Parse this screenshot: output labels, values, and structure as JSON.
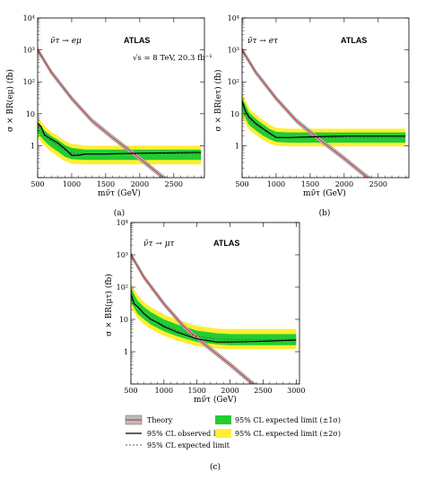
{
  "figure": {
    "legend": {
      "theory": "Theory",
      "observed": "95% CL observed limit",
      "expected": "95% CL expected limit",
      "band1": "95% CL expected limit (±1σ)",
      "band2": "95% CL expected limit (±2σ)"
    },
    "colors": {
      "band1": "#22cc33",
      "band2": "#ffee33",
      "theory_fill": "#bbbbbb",
      "theory_line": "#cc2222",
      "observed": "#000000",
      "expected": "#555555"
    }
  },
  "chart_data": [
    {
      "type": "line",
      "panel_label": "(a)",
      "title": "ATLAS",
      "process": "ν̃τ → eμ",
      "energy": "√s = 8 TeV, 20.3 fb⁻¹",
      "xlabel": "mν̃τ (GeV)",
      "ylabel": "σ × BR(eμ) (fb)",
      "xlim": [
        500,
        2950
      ],
      "ylim": [
        0.1,
        10000
      ],
      "yscale": "log",
      "x_ticks": [
        "500",
        "1000",
        "1500",
        "2000",
        "2500"
      ],
      "y_ticks": [
        "1",
        "10",
        "10²",
        "10³",
        "10⁴"
      ],
      "theory": {
        "x": [
          500,
          700,
          1000,
          1300,
          1600,
          2000,
          2300,
          2500
        ],
        "y": [
          1000,
          200,
          30,
          6,
          1.8,
          0.4,
          0.12,
          0.06
        ]
      },
      "observed": {
        "x": [
          500,
          550,
          600,
          700,
          800,
          900,
          1000,
          1100,
          1200,
          1500,
          2000,
          2500,
          2900
        ],
        "y": [
          5,
          4,
          2.2,
          1.6,
          1.2,
          0.8,
          0.5,
          0.5,
          0.55,
          0.55,
          0.58,
          0.6,
          0.62
        ]
      },
      "expected": {
        "x": [
          500,
          550,
          600,
          700,
          800,
          900,
          1000,
          1100,
          1200,
          1500,
          2000,
          2500,
          2900
        ],
        "y": [
          4,
          3.5,
          2,
          1.4,
          1,
          0.7,
          0.6,
          0.55,
          0.55,
          0.55,
          0.55,
          0.55,
          0.55
        ]
      },
      "band1": {
        "x": [
          500,
          600,
          700,
          800,
          900,
          1000,
          1200,
          1500,
          2000,
          2500,
          2900
        ],
        "lo": [
          2.5,
          1.4,
          0.9,
          0.65,
          0.45,
          0.38,
          0.36,
          0.36,
          0.36,
          0.36,
          0.36
        ],
        "hi": [
          5.5,
          3,
          2,
          1.5,
          1.05,
          0.85,
          0.75,
          0.75,
          0.75,
          0.75,
          0.75
        ]
      },
      "band2": {
        "x": [
          500,
          600,
          700,
          800,
          900,
          1000,
          1200,
          1500,
          2000,
          2500,
          2900
        ],
        "lo": [
          1.8,
          1,
          0.65,
          0.45,
          0.33,
          0.27,
          0.26,
          0.26,
          0.26,
          0.26,
          0.26
        ],
        "hi": [
          7.5,
          4.2,
          2.7,
          2,
          1.4,
          1.15,
          1,
          1,
          1,
          1,
          1
        ]
      }
    },
    {
      "type": "line",
      "panel_label": "(b)",
      "title": "ATLAS",
      "process": "ν̃τ → eτ",
      "xlabel": "mν̃τ (GeV)",
      "ylabel": "σ × BR(eτ) (fb)",
      "xlim": [
        500,
        2950
      ],
      "ylim": [
        0.1,
        10000
      ],
      "yscale": "log",
      "x_ticks": [
        "500",
        "1000",
        "1500",
        "2000",
        "2500"
      ],
      "y_ticks": [
        "1",
        "10",
        "10²",
        "10³",
        "10⁴"
      ],
      "theory": {
        "x": [
          500,
          700,
          1000,
          1300,
          1600,
          2000,
          2300,
          2500
        ],
        "y": [
          1000,
          200,
          30,
          6,
          1.8,
          0.4,
          0.12,
          0.06
        ]
      },
      "observed": {
        "x": [
          500,
          550,
          600,
          700,
          800,
          900,
          1000,
          1100,
          1200,
          1500,
          2000,
          2500,
          2900
        ],
        "y": [
          25,
          12,
          8,
          5,
          3.5,
          2.5,
          1.8,
          1.8,
          1.8,
          1.9,
          2,
          2,
          2
        ]
      },
      "expected": {
        "x": [
          500,
          550,
          600,
          700,
          800,
          900,
          1000,
          1100,
          1200,
          1500,
          2000,
          2500,
          2900
        ],
        "y": [
          20,
          11,
          7,
          4.5,
          3.2,
          2.3,
          1.9,
          1.8,
          1.8,
          1.8,
          1.8,
          1.8,
          1.8
        ]
      },
      "band1": {
        "x": [
          500,
          600,
          700,
          800,
          900,
          1000,
          1200,
          1500,
          2000,
          2500,
          2900
        ],
        "lo": [
          12,
          4.5,
          3,
          2.1,
          1.6,
          1.3,
          1.25,
          1.25,
          1.25,
          1.25,
          1.25
        ],
        "hi": [
          32,
          11,
          7,
          4.8,
          3.4,
          2.7,
          2.6,
          2.6,
          2.6,
          2.6,
          2.6
        ]
      },
      "band2": {
        "x": [
          500,
          600,
          700,
          800,
          900,
          1000,
          1200,
          1500,
          2000,
          2500,
          2900
        ],
        "lo": [
          8,
          3.2,
          2.2,
          1.5,
          1.2,
          1,
          0.95,
          0.95,
          0.95,
          0.95,
          0.95
        ],
        "hi": [
          45,
          15,
          9.5,
          6.5,
          4.6,
          3.6,
          3.4,
          3.4,
          3.4,
          3.4,
          3.4
        ]
      }
    },
    {
      "type": "line",
      "panel_label": "(c)",
      "title": "ATLAS",
      "process": "ν̃τ → μτ",
      "xlabel": "mν̃τ (GeV)",
      "ylabel": "σ × BR(μτ) (fb)",
      "xlim": [
        500,
        3050
      ],
      "ylim": [
        0.1,
        10000
      ],
      "yscale": "log",
      "x_ticks": [
        "500",
        "1000",
        "1500",
        "2000",
        "2500",
        "3000"
      ],
      "y_ticks": [
        "1",
        "10",
        "10²",
        "10³",
        "10⁴"
      ],
      "theory": {
        "x": [
          500,
          700,
          1000,
          1300,
          1600,
          2000,
          2300,
          2500
        ],
        "y": [
          1000,
          200,
          30,
          6,
          1.8,
          0.4,
          0.12,
          0.06
        ]
      },
      "observed": {
        "x": [
          500,
          550,
          600,
          700,
          800,
          900,
          1000,
          1200,
          1500,
          1800,
          2000,
          2500,
          3000
        ],
        "y": [
          60,
          30,
          25,
          15,
          10,
          8,
          6,
          4,
          2.5,
          2,
          2,
          2.1,
          2.3
        ]
      },
      "expected": {
        "x": [
          500,
          550,
          600,
          700,
          800,
          900,
          1000,
          1200,
          1500,
          1800,
          2000,
          2500,
          3000
        ],
        "y": [
          55,
          32,
          24,
          15,
          11,
          8,
          6.5,
          4.5,
          3,
          2.5,
          2.4,
          2.4,
          2.4
        ]
      },
      "band1": {
        "x": [
          500,
          600,
          700,
          800,
          1000,
          1200,
          1500,
          1800,
          2000,
          2500,
          3000
        ],
        "lo": [
          35,
          15,
          10,
          7,
          4.3,
          3,
          2,
          1.7,
          1.6,
          1.6,
          1.6
        ],
        "hi": [
          90,
          38,
          24,
          17,
          10,
          7,
          4.5,
          3.7,
          3.5,
          3.5,
          3.5
        ]
      },
      "band2": {
        "x": [
          500,
          600,
          700,
          800,
          1000,
          1200,
          1500,
          1800,
          2000,
          2500,
          3000
        ],
        "lo": [
          25,
          11,
          7,
          5,
          3.1,
          2.2,
          1.5,
          1.25,
          1.2,
          1.2,
          1.2
        ],
        "hi": [
          130,
          55,
          34,
          24,
          14,
          10,
          6.3,
          5.2,
          5,
          5,
          5
        ]
      }
    }
  ]
}
